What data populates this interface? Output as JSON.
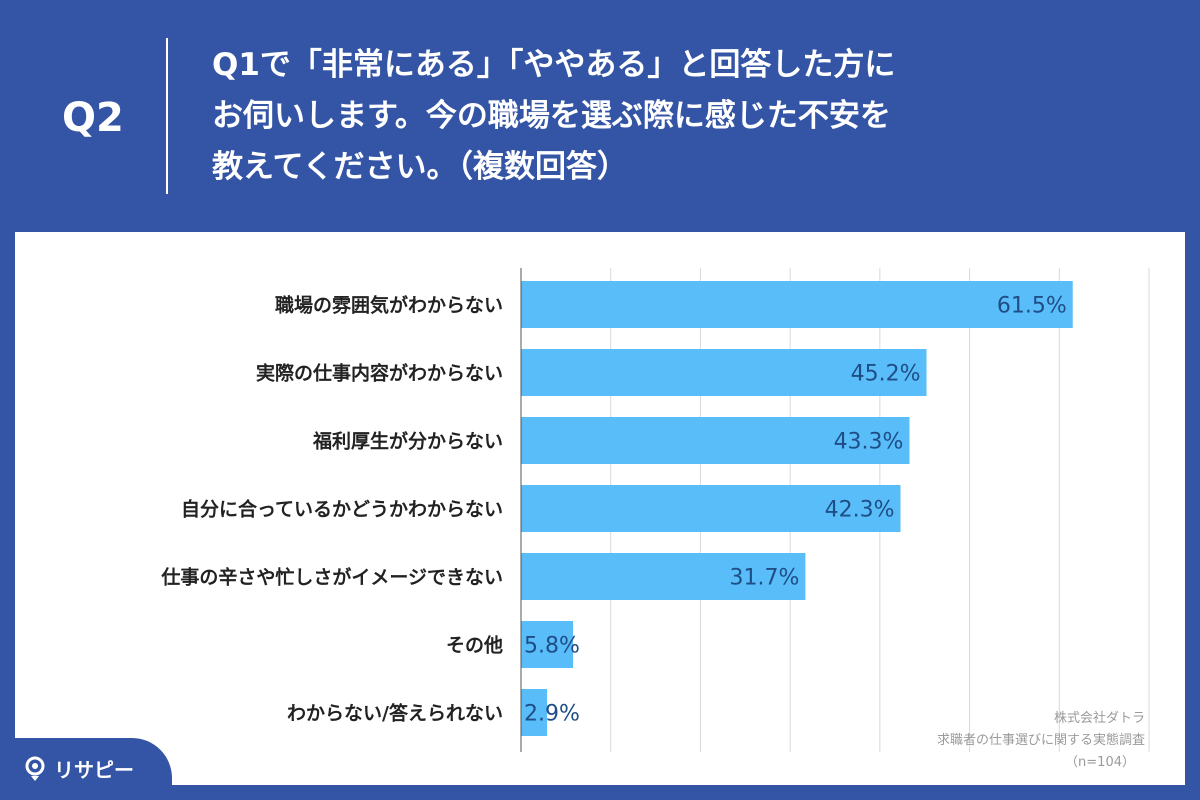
{
  "header": {
    "q_label": "Q2",
    "question_lines": [
      "Q1で「非常にある」「ややある」と回答した方に",
      "お伺いします。今の職場を選ぶ際に感じた不安を",
      "教えてください。（複数回答）"
    ]
  },
  "chart_data": {
    "type": "bar",
    "orientation": "horizontal",
    "categories": [
      "職場の雰囲気がわからない",
      "実際の仕事内容がわからない",
      "福利厚生が分からない",
      "自分に合っているかどうかわからない",
      "仕事の辛さや忙しさがイメージできない",
      "その他",
      "わからない/答えられない"
    ],
    "values": [
      61.5,
      45.2,
      43.3,
      42.3,
      31.7,
      5.8,
      2.9
    ],
    "value_labels": [
      "61.5%",
      "45.2%",
      "43.3%",
      "42.3%",
      "31.7%",
      "5.8%",
      "2.9%"
    ],
    "xlim": [
      0,
      70
    ],
    "grid": true,
    "bar_color": "#59bdf9"
  },
  "source": {
    "company": "株式会社ダトラ",
    "survey": "求職者の仕事選びに関する実態調査",
    "n": "（n=104）"
  },
  "logo": {
    "text": "リサピー"
  },
  "colors": {
    "background": "#3455a5",
    "bar": "#59bdf9",
    "value_text": "#1f4e86"
  }
}
